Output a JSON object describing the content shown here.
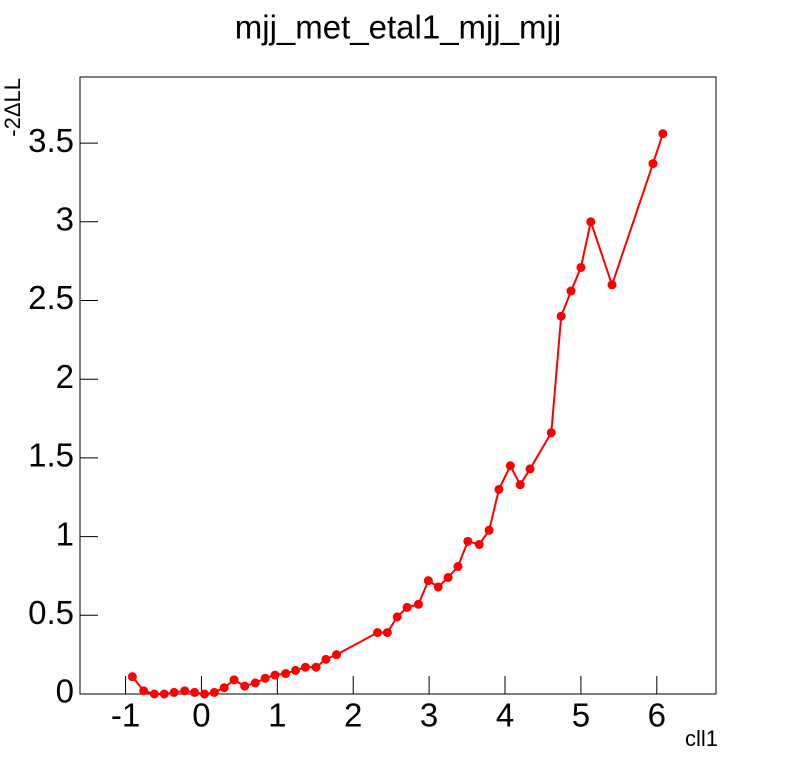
{
  "chart_data": {
    "type": "line",
    "title": "mjj_met_etal1_mjj_mjj",
    "x_label": "cll1",
    "y_label": "-2ΔLL",
    "x": [
      -0.91,
      -0.76,
      -0.62,
      -0.49,
      -0.36,
      -0.22,
      -0.09,
      0.04,
      0.17,
      0.3,
      0.43,
      0.57,
      0.71,
      0.84,
      0.97,
      1.11,
      1.24,
      1.37,
      1.51,
      1.64,
      1.78,
      2.32,
      2.45,
      2.58,
      2.71,
      2.86,
      2.99,
      3.12,
      3.25,
      3.38,
      3.51,
      3.66,
      3.79,
      3.92,
      4.07,
      4.2,
      4.33,
      4.61,
      4.74,
      4.87,
      5.0,
      5.13,
      5.41,
      5.95,
      6.08
    ],
    "series": [
      {
        "color": "#ff0000",
        "values": [
          0.11,
          0.02,
          0.0,
          0.0,
          0.01,
          0.02,
          0.01,
          0.0,
          0.01,
          0.04,
          0.09,
          0.05,
          0.07,
          0.1,
          0.12,
          0.13,
          0.15,
          0.17,
          0.17,
          0.22,
          0.25,
          0.39,
          0.39,
          0.49,
          0.55,
          0.57,
          0.72,
          0.68,
          0.74,
          0.81,
          0.97,
          0.95,
          1.04,
          1.3,
          1.45,
          1.33,
          1.43,
          1.66,
          2.4,
          2.56,
          2.71,
          3.0,
          2.6,
          3.37,
          3.56
        ]
      }
    ],
    "xlim": [
      -1.6,
      6.78
    ],
    "xticks": [
      -1,
      0,
      1,
      2,
      3,
      4,
      5,
      6
    ],
    "ylim": [
      0,
      3.92
    ],
    "yticks": [
      0,
      0.5,
      1,
      1.5,
      2,
      2.5,
      3,
      3.5
    ]
  }
}
